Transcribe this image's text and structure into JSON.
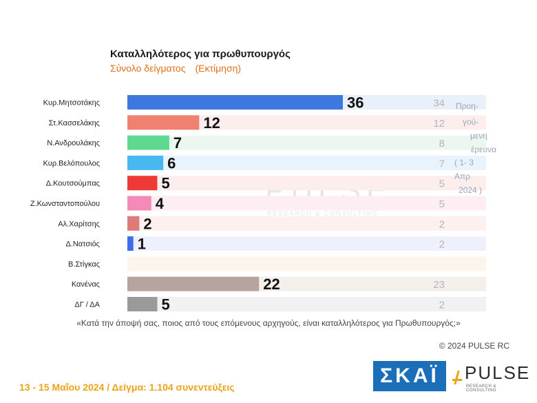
{
  "title": "Καταλληλότερος για πρωθυπουργός",
  "subtitle_a": "Σύνολο δείγματος",
  "subtitle_b": "(Εκτίμηση)",
  "watermark": "PULSE",
  "watermark_sub": "RESEARCH & CONSULTING",
  "question": "«Κατά την άποψή σας, ποιος από τους επόμενους αρχηγούς, είναι καταλληλότερος για Πρωθυπουργός;»",
  "copyright": "© 2024 PULSE RC",
  "footer": "13 - 15 Μαΐου 2024 / Δείγμα: 1.104 συνεντεύξεις",
  "logo_skai": "ΣΚΑΪ",
  "logo_pulse": "PULSE",
  "logo_pulse_sub": "RESEARCH & CONSULTING",
  "chart_data": {
    "type": "bar",
    "orientation": "horizontal",
    "title": "Καταλληλότερος για πρωθυπουργός",
    "subtitle": "Σύνολο δείγματος (Εκτίμηση)",
    "categories": [
      "Κυρ.Μητσοτάκης",
      "Στ.Κασσελάκης",
      "Ν.Ανδρουλάκης",
      "Κυρ.Βελόπουλος",
      "Δ.Κουτσούμπας",
      "Ζ.Κωνσταντοπούλου",
      "Αλ.Χαρίτσης",
      "Δ.Νατσιός",
      "Β.Στίγκας",
      "Κανένας",
      "ΔΓ / ΔΑ"
    ],
    "values": [
      36,
      12,
      7,
      6,
      5,
      4,
      2,
      1,
      null,
      22,
      5
    ],
    "previous_values": [
      34,
      12,
      8,
      7,
      5,
      5,
      2,
      2,
      null,
      23,
      2
    ],
    "previous_label_lines": [
      "Προη-",
      "γού-",
      "μενη",
      "έρευνα",
      "( 1- 3",
      "Απρ",
      "2024 )"
    ],
    "colors": [
      "#3d78e0",
      "#f08070",
      "#5fd98f",
      "#48b8f0",
      "#ee3a36",
      "#f58ab8",
      "#e07a7a",
      "#3d6ee8",
      "#cccccc",
      "#b8a49e",
      "#9a9a9a"
    ],
    "row_backgrounds": [
      "#eaf0fa",
      "#fdeeee",
      "#ecf7f0",
      "#e9f3fb",
      "#fdeeee",
      "#fdeef4",
      "#fdf0ef",
      "#eef0fb",
      "#fdf4ec",
      "#f5efec",
      "#f1f1f1"
    ],
    "xlim": [
      0,
      36
    ]
  }
}
